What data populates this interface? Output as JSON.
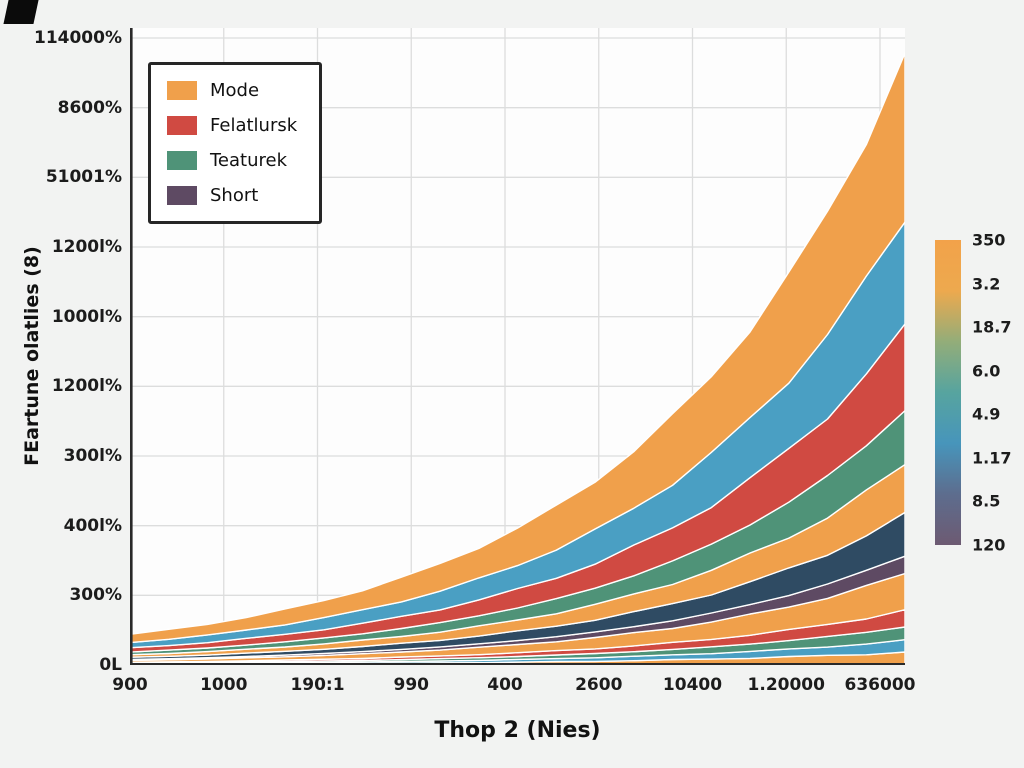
{
  "chart_data": {
    "type": "area",
    "stacked": true,
    "title": "",
    "xlabel": "Thop 2 (Nies)",
    "ylabel": "FEartune olatlies (8)",
    "grid": true,
    "ylim": [
      0,
      700
    ],
    "x": [
      0,
      1,
      2,
      3,
      4,
      5,
      6,
      7,
      8,
      9,
      10,
      11,
      12,
      13,
      14,
      15,
      16,
      17,
      18,
      19,
      20
    ],
    "x_tick_labels": [
      "900",
      "1000",
      "190:1",
      "990",
      "400",
      "2600",
      "10400",
      "1.20000",
      "636000"
    ],
    "y_tick_labels": [
      "114000%",
      "8600%",
      "51001%",
      "1200l%",
      "1000l%",
      "1200l%",
      "300l%",
      "400l%",
      "300%",
      "0L"
    ],
    "legend": {
      "position": "top-left",
      "entries": [
        {
          "label": "Mode",
          "color": "#f0a04b"
        },
        {
          "label": "Felatlursk",
          "color": "#d04a42"
        },
        {
          "label": "Teaturek",
          "color": "#4f9378"
        },
        {
          "label": "Short",
          "color": "#5e4a63"
        }
      ]
    },
    "series": [
      {
        "name": "layer-01",
        "color": "#f0a04b",
        "values": [
          0.7,
          0.8,
          0.9,
          1.1,
          1.3,
          1.5,
          1.7,
          2.0,
          2.3,
          2.7,
          3.1,
          3.6,
          4.2,
          4.9,
          5.7,
          6.6,
          7.7,
          8.9,
          10.4,
          12.1,
          14
        ]
      },
      {
        "name": "layer-02",
        "color": "#4a9fc3",
        "values": [
          0.7,
          0.8,
          0.9,
          1.0,
          1.2,
          1.4,
          1.6,
          1.9,
          2.2,
          2.5,
          2.9,
          3.4,
          3.9,
          4.6,
          5.3,
          6.2,
          7.2,
          8.3,
          9.6,
          11.2,
          13
        ]
      },
      {
        "name": "layer-03",
        "color": "#4f9378",
        "values": [
          0.8,
          0.9,
          1.0,
          1.2,
          1.4,
          1.6,
          1.8,
          2.1,
          2.5,
          2.9,
          3.4,
          3.9,
          4.5,
          5.3,
          6.1,
          7.1,
          8.3,
          9.6,
          11.1,
          12.9,
          15
        ]
      },
      {
        "name": "layer-04",
        "color": "#d04a42",
        "values": [
          0.9,
          1.0,
          1.2,
          1.4,
          1.6,
          1.9,
          2.2,
          2.6,
          3.0,
          3.5,
          4.0,
          4.7,
          5.4,
          6.3,
          7.3,
          8.5,
          9.9,
          11.5,
          13.4,
          15.5,
          18
        ]
      },
      {
        "name": "layer-05",
        "color": "#f0a04b",
        "values": [
          2.0,
          2.3,
          2.7,
          3.1,
          3.6,
          4.2,
          4.9,
          5.7,
          6.6,
          7.7,
          9.0,
          10.4,
          12.1,
          14.0,
          16.3,
          19.0,
          22.0,
          25.6,
          29.7,
          34.5,
          40
        ]
      },
      {
        "name": "layer-06",
        "color": "#5e4a63",
        "values": [
          1.0,
          1.2,
          1.3,
          1.6,
          1.8,
          2.1,
          2.5,
          2.9,
          3.3,
          3.9,
          4.5,
          5.2,
          6.0,
          7.0,
          8.2,
          9.5,
          11.0,
          12.8,
          14.8,
          17.2,
          20
        ]
      },
      {
        "name": "layer-07",
        "color": "#2f4b63",
        "values": [
          2.3,
          2.6,
          3.0,
          3.5,
          4.1,
          4.8,
          5.5,
          6.4,
          7.5,
          8.7,
          10.1,
          11.7,
          13.6,
          15.8,
          18.4,
          21.3,
          24.8,
          28.8,
          33.4,
          38.8,
          45
        ]
      },
      {
        "name": "layer-08",
        "color": "#f0a04b",
        "values": [
          2.8,
          3.2,
          3.7,
          4.3,
          5.0,
          5.8,
          6.8,
          7.9,
          9.1,
          10.6,
          12.3,
          14.3,
          16.6,
          19.3,
          22.4,
          26.1,
          30.3,
          35.1,
          40.8,
          47.4,
          55
        ]
      },
      {
        "name": "layer-09",
        "color": "#4f9378",
        "values": [
          3.0,
          3.5,
          4.0,
          4.7,
          5.5,
          6.4,
          7.4,
          8.6,
          10.0,
          11.6,
          13.4,
          15.6,
          18.1,
          21.1,
          24.5,
          28.4,
          33.0,
          38.3,
          44.5,
          51.7,
          60
        ]
      },
      {
        "name": "layer-10",
        "color": "#d04a42",
        "values": [
          4.5,
          5.2,
          6.0,
          7.0,
          8.2,
          9.5,
          11.1,
          12.9,
          14.9,
          17.4,
          20.2,
          23.4,
          27.2,
          31.6,
          36.7,
          42.7,
          49.5,
          57.5,
          66.8,
          77.6,
          90
        ]
      },
      {
        "name": "layer-11",
        "color": "#4a9fc3",
        "values": [
          6.0,
          7.0,
          8.1,
          9.4,
          10.9,
          12.7,
          14.7,
          17.1,
          19.9,
          23.1,
          26.9,
          31.2,
          36.3,
          42.1,
          49.0,
          56.9,
          66.1,
          76.7,
          89.1,
          103.5,
          120
        ]
      },
      {
        "name": "layer-12",
        "color": "#f0a04b",
        "values": [
          9.0,
          10.4,
          12.1,
          14.1,
          16.3,
          19.0,
          22.1,
          25.7,
          29.8,
          34.7,
          40.3,
          46.8,
          54.4,
          63.2,
          73.4,
          85.3,
          99.1,
          115.1,
          133.6,
          155.2,
          180
        ]
      }
    ]
  },
  "colorbar": {
    "labels": [
      "350",
      "3.2",
      "18.7",
      "6.0",
      "4.9",
      "1.17",
      "8.5",
      "120"
    ],
    "gradient": [
      "#f2a24a",
      "#eda94e",
      "#93ad79",
      "#57a49f",
      "#4795bb",
      "#5d6d8e",
      "#6d5a72"
    ]
  }
}
